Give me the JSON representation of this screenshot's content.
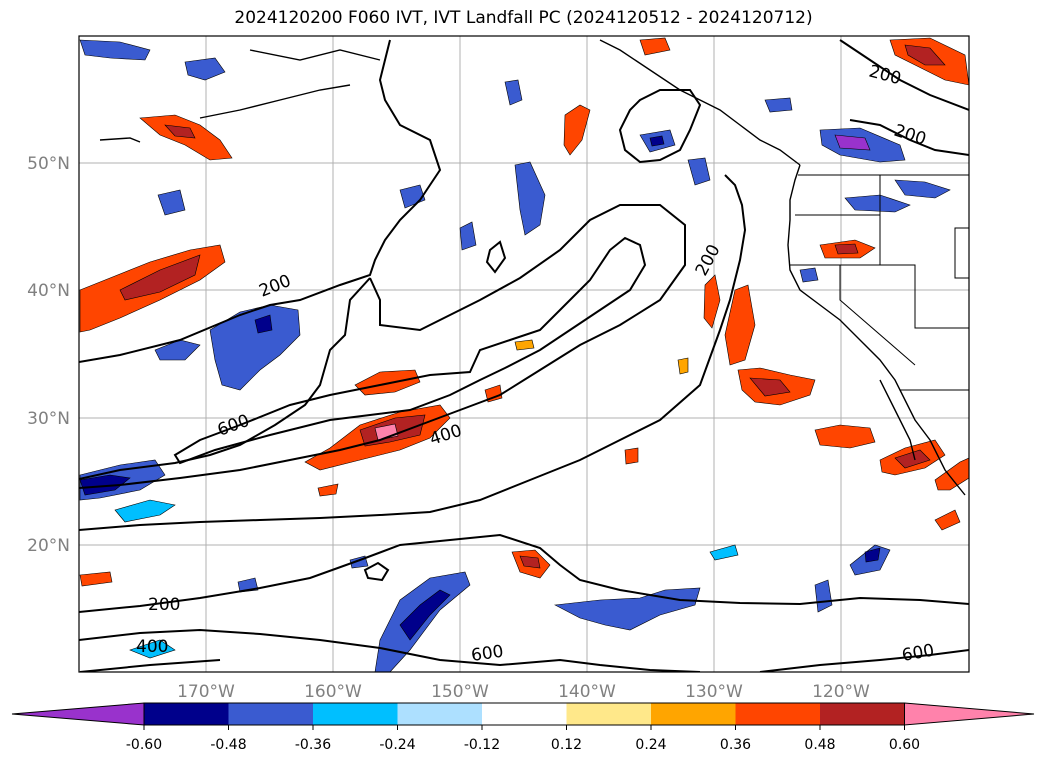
{
  "title": "2024120200 F060 IVT, IVT Landfall PC (2024120512 - 2024120712)",
  "map": {
    "lat_labels": [
      "50°N",
      "40°N",
      "30°N",
      "20°N"
    ],
    "lon_labels": [
      "170°W",
      "160°W",
      "150°W",
      "140°W",
      "130°W",
      "120°W"
    ],
    "contour_labels": [
      "200",
      "200",
      "200",
      "200",
      "200",
      "600",
      "400",
      "400",
      "600",
      "600"
    ]
  },
  "colorbar": {
    "ticks": [
      "-0.60",
      "-0.48",
      "-0.36",
      "-0.24",
      "-0.12",
      "0.12",
      "0.24",
      "0.36",
      "0.48",
      "0.60"
    ],
    "colors": {
      "under": "#9932CC",
      "n060": "#00008B",
      "n048": "#3A5BD0",
      "n036": "#00BFFF",
      "n024": "#ADE0FF",
      "n012": "#FFFFFF",
      "p012": "#FFE88A",
      "p024": "#FFA500",
      "p036": "#FF4500",
      "p048": "#B22222",
      "p060": "#FF82AB"
    }
  }
}
